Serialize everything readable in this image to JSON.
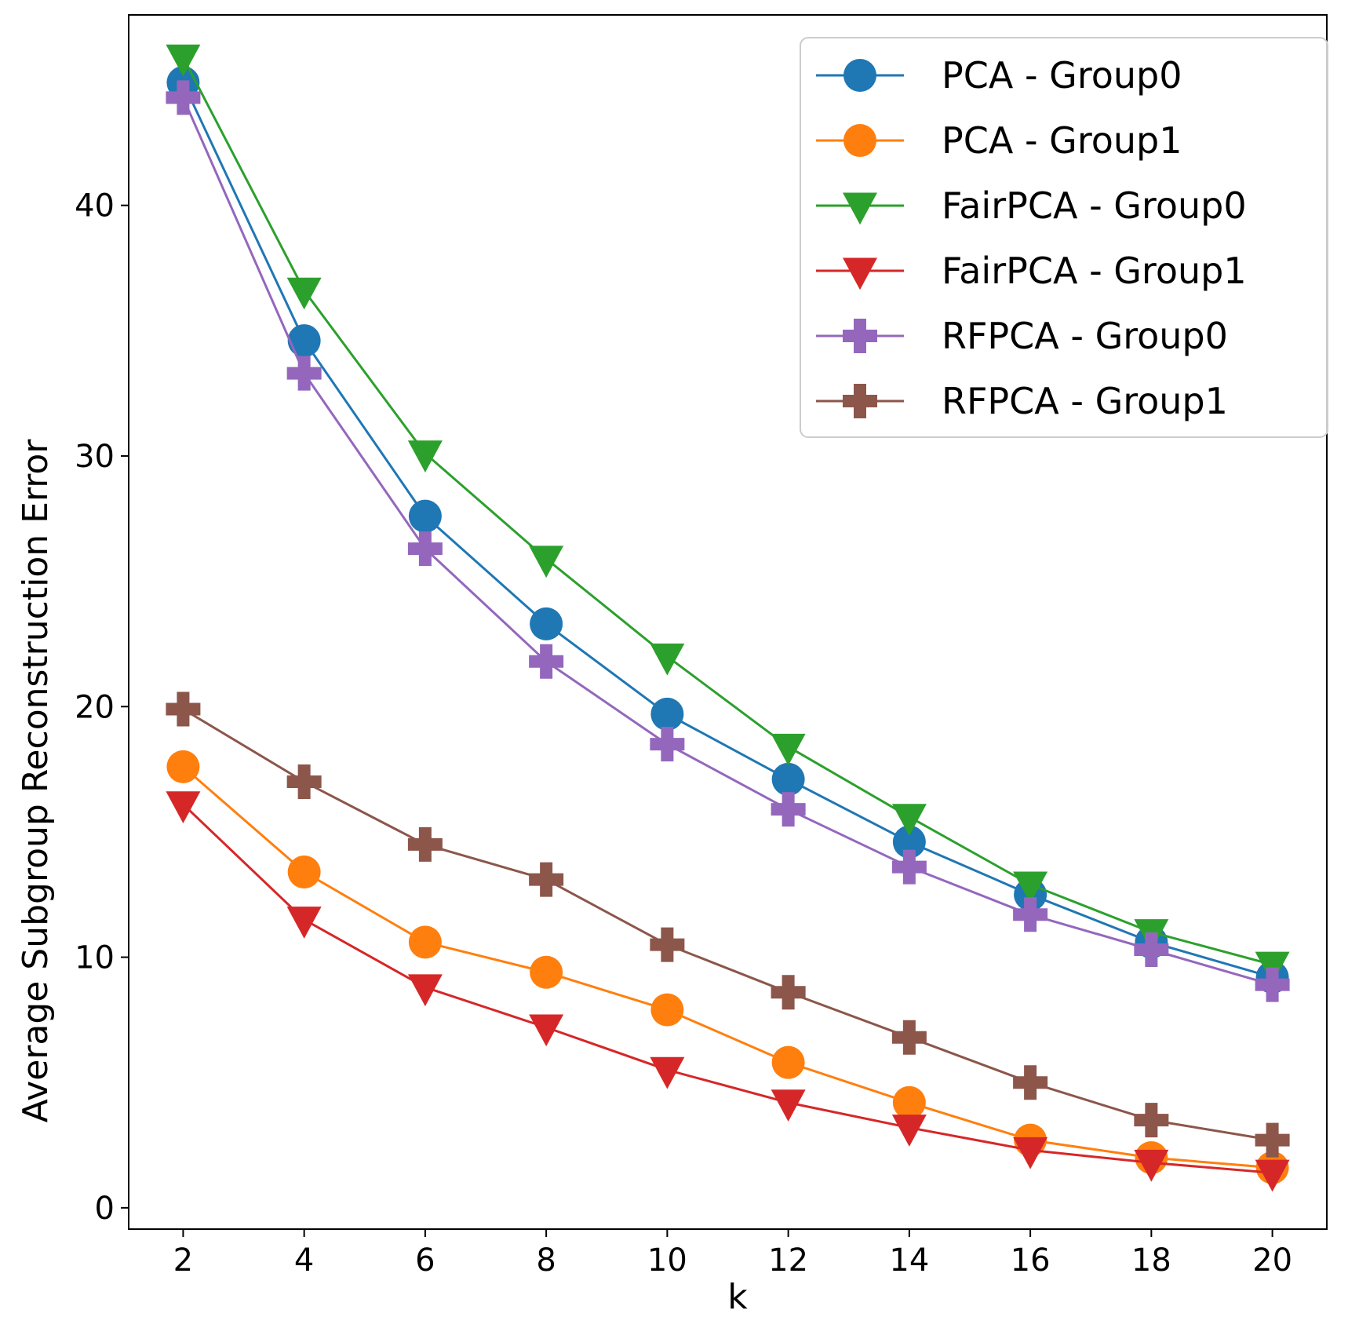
{
  "chart_data": {
    "type": "line",
    "title": "",
    "xlabel": "k",
    "ylabel": "Average Subgroup Reconstruction Error",
    "x": [
      2,
      4,
      6,
      8,
      10,
      12,
      14,
      16,
      18,
      20
    ],
    "xticks": [
      2,
      4,
      6,
      8,
      10,
      12,
      14,
      16,
      18,
      20
    ],
    "yticks": [
      0,
      10,
      20,
      30,
      40
    ],
    "xlim": [
      1.1,
      20.9
    ],
    "ylim": [
      -0.85,
      47.6
    ],
    "grid": false,
    "legend_position": "top-right",
    "series": [
      {
        "name": "PCA - Group0",
        "color": "#1f77b4",
        "marker": "circle",
        "values": [
          44.9,
          34.6,
          27.6,
          23.3,
          19.7,
          17.1,
          14.6,
          12.5,
          10.6,
          9.2
        ]
      },
      {
        "name": "PCA - Group1",
        "color": "#ff7f0e",
        "marker": "circle",
        "values": [
          17.6,
          13.4,
          10.6,
          9.4,
          7.9,
          5.8,
          4.2,
          2.7,
          2.0,
          1.6
        ]
      },
      {
        "name": "FairPCA - Group0",
        "color": "#2ca02c",
        "marker": "triangle-down",
        "values": [
          45.9,
          36.6,
          30.1,
          25.9,
          22.0,
          18.4,
          15.6,
          12.9,
          11.0,
          9.7
        ]
      },
      {
        "name": "FairPCA - Group1",
        "color": "#d62728",
        "marker": "triangle-down",
        "values": [
          16.1,
          11.5,
          8.8,
          7.2,
          5.5,
          4.2,
          3.2,
          2.3,
          1.8,
          1.4
        ]
      },
      {
        "name": "RFPCA - Group0",
        "color": "#9467bd",
        "marker": "plus",
        "values": [
          44.3,
          33.3,
          26.3,
          21.8,
          18.5,
          15.9,
          13.6,
          11.7,
          10.3,
          8.9
        ]
      },
      {
        "name": "RFPCA - Group1",
        "color": "#8c564b",
        "marker": "plus",
        "values": [
          19.9,
          17.0,
          14.5,
          13.1,
          10.5,
          8.6,
          6.8,
          5.0,
          3.5,
          2.7
        ]
      }
    ]
  }
}
